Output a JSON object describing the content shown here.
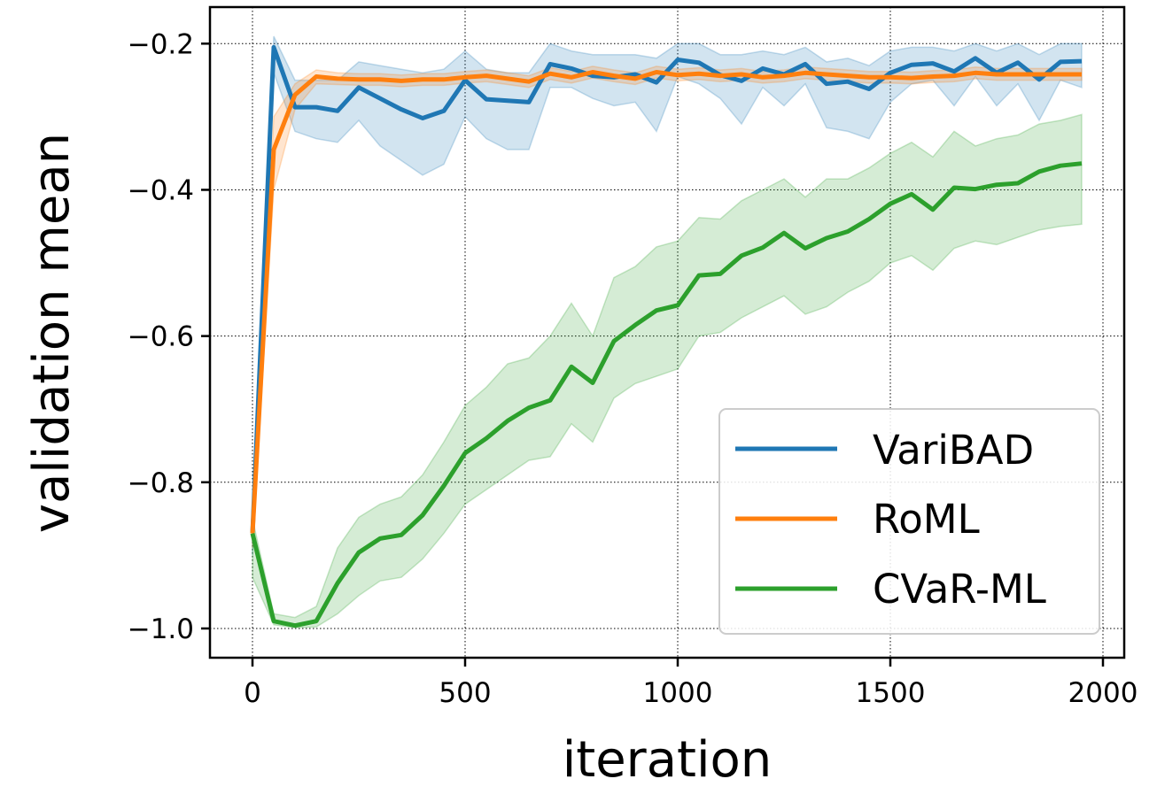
{
  "chart_data": {
    "type": "line",
    "xlabel": "iteration",
    "ylabel": "validation mean",
    "xlim": [
      -100,
      2050
    ],
    "ylim": [
      -1.04,
      -0.15
    ],
    "xticks": [
      0,
      500,
      1000,
      1500,
      2000
    ],
    "xtick_labels": [
      "0",
      "500",
      "1000",
      "1500",
      "2000"
    ],
    "yticks": [
      -1.0,
      -0.8,
      -0.6,
      -0.4,
      -0.2
    ],
    "ytick_labels": [
      "−1.0",
      "−0.8",
      "−0.6",
      "−0.4",
      "−0.2"
    ],
    "grid": true,
    "legend_position": "lower-right",
    "x": [
      0,
      50,
      100,
      150,
      200,
      250,
      300,
      350,
      400,
      450,
      500,
      550,
      600,
      650,
      700,
      750,
      800,
      850,
      900,
      950,
      1000,
      1050,
      1100,
      1150,
      1200,
      1250,
      1300,
      1350,
      1400,
      1450,
      1500,
      1550,
      1600,
      1650,
      1700,
      1750,
      1800,
      1850,
      1900,
      1950
    ],
    "series": [
      {
        "name": "VariBAD",
        "color": "#1f77b4",
        "values": [
          -0.87,
          -0.205,
          -0.287,
          -0.287,
          -0.292,
          -0.26,
          -0.275,
          -0.29,
          -0.302,
          -0.292,
          -0.25,
          -0.276,
          -0.278,
          -0.28,
          -0.228,
          -0.234,
          -0.244,
          -0.246,
          -0.242,
          -0.253,
          -0.222,
          -0.226,
          -0.243,
          -0.251,
          -0.234,
          -0.242,
          -0.228,
          -0.255,
          -0.252,
          -0.262,
          -0.24,
          -0.229,
          -0.227,
          -0.238,
          -0.22,
          -0.24,
          -0.226,
          -0.249,
          -0.225,
          -0.224
        ],
        "upper": [
          -0.84,
          -0.19,
          -0.25,
          -0.25,
          -0.25,
          -0.225,
          -0.23,
          -0.235,
          -0.24,
          -0.235,
          -0.21,
          -0.235,
          -0.24,
          -0.24,
          -0.2,
          -0.21,
          -0.215,
          -0.215,
          -0.215,
          -0.22,
          -0.2,
          -0.2,
          -0.215,
          -0.215,
          -0.21,
          -0.215,
          -0.205,
          -0.225,
          -0.22,
          -0.23,
          -0.21,
          -0.205,
          -0.205,
          -0.21,
          -0.2,
          -0.21,
          -0.2,
          -0.215,
          -0.2,
          -0.2
        ],
        "lower": [
          -0.9,
          -0.24,
          -0.32,
          -0.33,
          -0.335,
          -0.305,
          -0.34,
          -0.36,
          -0.38,
          -0.365,
          -0.3,
          -0.33,
          -0.345,
          -0.345,
          -0.26,
          -0.26,
          -0.275,
          -0.285,
          -0.28,
          -0.32,
          -0.245,
          -0.255,
          -0.275,
          -0.31,
          -0.26,
          -0.285,
          -0.255,
          -0.315,
          -0.32,
          -0.33,
          -0.28,
          -0.255,
          -0.25,
          -0.285,
          -0.245,
          -0.285,
          -0.255,
          -0.305,
          -0.25,
          -0.26
        ]
      },
      {
        "name": "RoML",
        "color": "#ff7f0e",
        "values": [
          -0.87,
          -0.345,
          -0.27,
          -0.245,
          -0.248,
          -0.249,
          -0.249,
          -0.251,
          -0.249,
          -0.249,
          -0.246,
          -0.244,
          -0.248,
          -0.252,
          -0.241,
          -0.246,
          -0.239,
          -0.244,
          -0.248,
          -0.239,
          -0.243,
          -0.241,
          -0.244,
          -0.242,
          -0.246,
          -0.244,
          -0.24,
          -0.242,
          -0.244,
          -0.246,
          -0.246,
          -0.247,
          -0.245,
          -0.244,
          -0.24,
          -0.242,
          -0.242,
          -0.242,
          -0.242,
          -0.242
        ],
        "upper": [
          -0.85,
          -0.3,
          -0.255,
          -0.236,
          -0.24,
          -0.241,
          -0.241,
          -0.243,
          -0.241,
          -0.241,
          -0.238,
          -0.236,
          -0.24,
          -0.244,
          -0.233,
          -0.238,
          -0.231,
          -0.236,
          -0.24,
          -0.231,
          -0.235,
          -0.233,
          -0.236,
          -0.234,
          -0.238,
          -0.236,
          -0.232,
          -0.234,
          -0.236,
          -0.238,
          -0.238,
          -0.239,
          -0.237,
          -0.236,
          -0.232,
          -0.234,
          -0.234,
          -0.234,
          -0.234,
          -0.234
        ],
        "lower": [
          -0.89,
          -0.4,
          -0.29,
          -0.255,
          -0.256,
          -0.257,
          -0.257,
          -0.259,
          -0.257,
          -0.257,
          -0.254,
          -0.252,
          -0.256,
          -0.26,
          -0.249,
          -0.254,
          -0.247,
          -0.252,
          -0.256,
          -0.247,
          -0.251,
          -0.249,
          -0.252,
          -0.25,
          -0.254,
          -0.252,
          -0.248,
          -0.25,
          -0.252,
          -0.254,
          -0.254,
          -0.255,
          -0.253,
          -0.252,
          -0.248,
          -0.25,
          -0.25,
          -0.25,
          -0.25,
          -0.25
        ]
      },
      {
        "name": "CVaR-ML",
        "color": "#2ca02c",
        "values": [
          -0.87,
          -0.99,
          -0.996,
          -0.99,
          -0.938,
          -0.896,
          -0.877,
          -0.872,
          -0.845,
          -0.805,
          -0.76,
          -0.74,
          -0.716,
          -0.698,
          -0.688,
          -0.642,
          -0.664,
          -0.607,
          -0.585,
          -0.565,
          -0.558,
          -0.517,
          -0.515,
          -0.49,
          -0.479,
          -0.459,
          -0.48,
          -0.466,
          -0.457,
          -0.44,
          -0.419,
          -0.406,
          -0.427,
          -0.397,
          -0.399,
          -0.393,
          -0.391,
          -0.375,
          -0.367,
          -0.364
        ],
        "upper": [
          -0.85,
          -0.98,
          -0.985,
          -0.97,
          -0.89,
          -0.848,
          -0.83,
          -0.82,
          -0.79,
          -0.745,
          -0.695,
          -0.67,
          -0.638,
          -0.63,
          -0.6,
          -0.555,
          -0.6,
          -0.52,
          -0.505,
          -0.478,
          -0.47,
          -0.438,
          -0.44,
          -0.415,
          -0.4,
          -0.385,
          -0.41,
          -0.385,
          -0.385,
          -0.37,
          -0.35,
          -0.335,
          -0.355,
          -0.32,
          -0.34,
          -0.33,
          -0.325,
          -0.31,
          -0.305,
          -0.297
        ],
        "lower": [
          -0.93,
          -0.995,
          -0.999,
          -0.998,
          -0.98,
          -0.955,
          -0.935,
          -0.93,
          -0.905,
          -0.87,
          -0.83,
          -0.81,
          -0.79,
          -0.77,
          -0.765,
          -0.72,
          -0.745,
          -0.685,
          -0.665,
          -0.655,
          -0.645,
          -0.6,
          -0.595,
          -0.575,
          -0.56,
          -0.545,
          -0.57,
          -0.56,
          -0.54,
          -0.525,
          -0.5,
          -0.49,
          -0.51,
          -0.48,
          -0.47,
          -0.475,
          -0.465,
          -0.455,
          -0.45,
          -0.447
        ]
      }
    ]
  }
}
